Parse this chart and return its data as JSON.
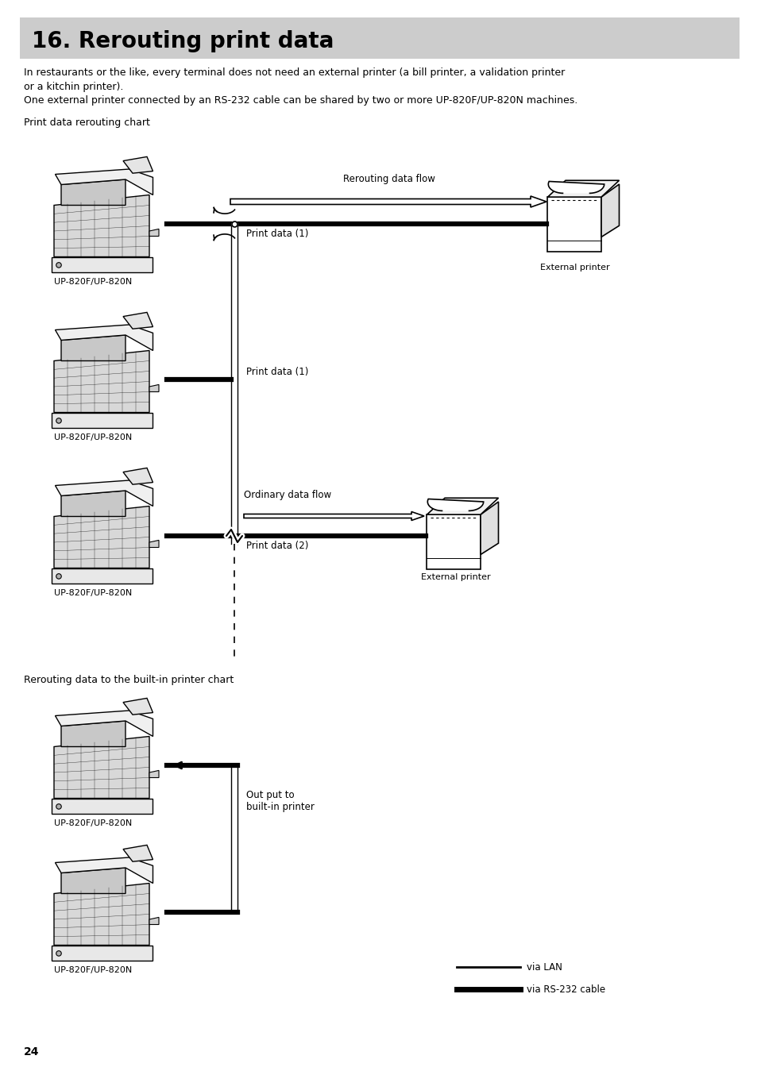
{
  "title": "16. Rerouting print data",
  "title_bg": "#cccccc",
  "body_text_1": "In restaurants or the like, every terminal does not need an external printer (a bill printer, a validation printer",
  "body_text_1b": "or a kitchin printer).",
  "body_text_2": "One external printer connected by an RS-232 cable can be shared by two or more UP-820F/UP-820N machines.",
  "section1_label": "Print data rerouting chart",
  "section2_label": "Rerouting data to the built-in printer chart",
  "label_up820": "UP-820F/UP-820N",
  "label_ext_printer": "External printer",
  "label_rerouting_flow": "Rerouting data flow",
  "label_print_data_1": "Print data (1)",
  "label_print_data_2": "Print data (2)",
  "label_ordinary_flow": "Ordinary data flow",
  "label_output": "Out put to\nbuilt-in printer",
  "label_via_lan": "via LAN",
  "label_via_rs232": "via RS-232 cable",
  "page_number": "24",
  "bg_color": "#ffffff",
  "text_color": "#000000",
  "fig_w": 9.54,
  "fig_h": 13.49,
  "dpi": 100
}
